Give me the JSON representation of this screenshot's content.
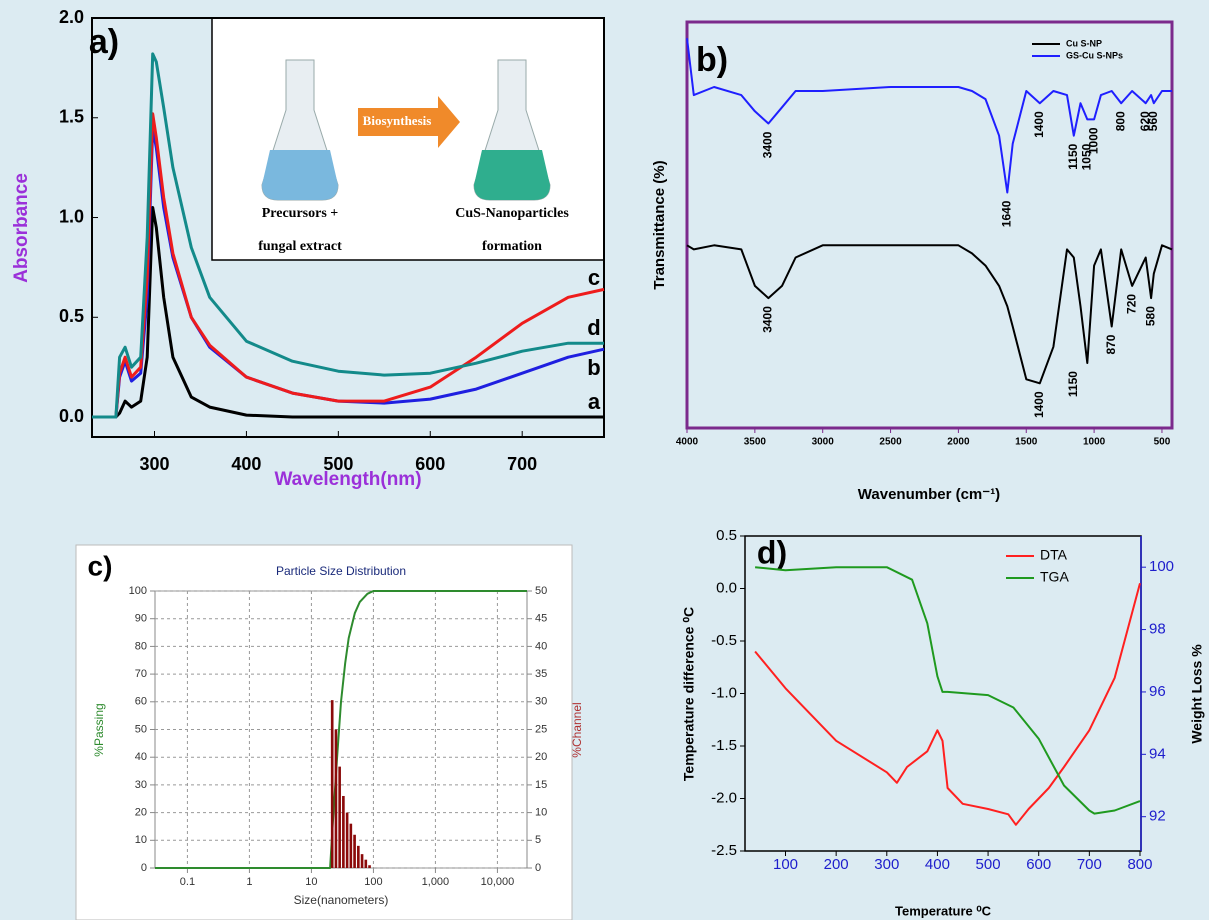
{
  "chart_data": [
    {
      "type": "line",
      "panel_label": "a)",
      "xlabel": "Wavelength(nm)",
      "ylabel": "Absorbance",
      "xlim": [
        232,
        789
      ],
      "ylim": [
        -0.1,
        2.0
      ],
      "xticks": [
        300,
        400,
        500,
        600,
        700
      ],
      "yticks": [
        {
          "value": 0,
          "label": "0.0"
        },
        0.5,
        {
          "value": 1,
          "label": "1.0"
        },
        1.5,
        {
          "value": 2,
          "label": "2.0"
        }
      ],
      "x": [
        232,
        258,
        262,
        268,
        275,
        285,
        292,
        298,
        302,
        310,
        320,
        340,
        360,
        400,
        450,
        500,
        550,
        600,
        650,
        700,
        750,
        789
      ],
      "series": [
        {
          "name": "a",
          "color": "#000000",
          "values": [
            0,
            0,
            0.02,
            0.08,
            0.05,
            0.08,
            0.3,
            1.05,
            0.95,
            0.6,
            0.3,
            0.1,
            0.05,
            0.01,
            0,
            0,
            0,
            0,
            0,
            0,
            0,
            0
          ]
        },
        {
          "name": "b",
          "color": "#1f1fe0",
          "values": [
            0,
            0,
            0.2,
            0.28,
            0.18,
            0.22,
            0.6,
            1.45,
            1.35,
            1.05,
            0.8,
            0.5,
            0.35,
            0.2,
            0.12,
            0.08,
            0.07,
            0.09,
            0.14,
            0.22,
            0.3,
            0.34
          ]
        },
        {
          "name": "c",
          "color": "#ee1c1c",
          "values": [
            0,
            0,
            0.22,
            0.3,
            0.2,
            0.25,
            0.7,
            1.52,
            1.4,
            1.1,
            0.82,
            0.5,
            0.36,
            0.2,
            0.12,
            0.08,
            0.08,
            0.15,
            0.3,
            0.47,
            0.6,
            0.64
          ]
        },
        {
          "name": "d",
          "color": "#138a8a",
          "values": [
            0,
            0,
            0.3,
            0.35,
            0.25,
            0.3,
            0.9,
            1.82,
            1.78,
            1.55,
            1.25,
            0.85,
            0.6,
            0.38,
            0.28,
            0.23,
            0.21,
            0.22,
            0.27,
            0.33,
            0.37,
            0.37
          ]
        }
      ],
      "inset": {
        "arrow": "Biosynthesis",
        "left": [
          "Precursors +",
          "fungal extract"
        ],
        "right": [
          "CuS-Nanoparticles",
          "formation"
        ]
      }
    },
    {
      "type": "line",
      "panel_label": "b)",
      "xlabel": "Wavenumber (cm⁻¹)",
      "ylabel": "Transmittance (%)",
      "xlim": [
        4000,
        426
      ],
      "ylim": [
        0,
        100
      ],
      "xticks": [
        4000,
        3500,
        3000,
        2500,
        2000,
        1500,
        1000,
        500
      ],
      "legend": "upper right",
      "x": [
        4000,
        3950,
        3800,
        3600,
        3500,
        3400,
        3300,
        3200,
        3000,
        2500,
        2000,
        1900,
        1800,
        1700,
        1640,
        1600,
        1500,
        1400,
        1300,
        1200,
        1150,
        1100,
        1050,
        1000,
        950,
        870,
        800,
        720,
        620,
        580,
        560,
        500,
        426
      ],
      "series": [
        {
          "name": "Cu S-NP",
          "color": "#000000",
          "values": [
            45,
            44,
            45,
            44,
            35,
            32,
            35,
            42,
            45,
            45,
            45,
            43,
            40,
            35,
            30,
            25,
            12,
            11,
            20,
            44,
            42,
            30,
            16,
            40,
            44,
            25,
            44,
            35,
            42,
            32,
            38,
            45,
            44
          ],
          "peaks": [
            3400,
            1400,
            1150,
            870,
            720,
            580
          ]
        },
        {
          "name": "GS-Cu S-NPs",
          "color": "#1f1fff",
          "values": [
            96,
            82,
            84,
            82,
            78,
            75,
            79,
            83,
            83,
            84,
            84,
            83,
            81,
            72,
            58,
            70,
            83,
            80,
            83,
            82,
            72,
            80,
            76,
            76,
            82,
            83,
            80,
            83,
            80,
            82,
            80,
            83,
            83
          ],
          "peaks": [
            3400,
            1640,
            1400,
            1150,
            1050,
            1000,
            800,
            620,
            560
          ]
        }
      ]
    },
    {
      "type": "histogram",
      "panel_label": "c)",
      "title": "Particle Size Distribution",
      "xlabel": "Size(nanometers)",
      "ylabel": "%Passing",
      "y2label": "%Channel",
      "xlim": [
        0.03,
        30000
      ],
      "log_x": true,
      "ylim": [
        0,
        100
      ],
      "y2lim": [
        0,
        50
      ],
      "grid": true,
      "xticks": [
        0.1,
        1,
        10,
        100,
        {
          "value": 1000,
          "label": "1,000"
        },
        {
          "value": 10000,
          "label": "10,000"
        }
      ],
      "yticks": [
        0,
        10,
        20,
        30,
        40,
        50,
        60,
        70,
        80,
        90,
        100
      ],
      "y2ticks": [
        0,
        5,
        10,
        15,
        20,
        25,
        30,
        35,
        40,
        45,
        50
      ],
      "series": [
        {
          "type": "line",
          "color": "#2e8b2e",
          "x": [
            0.03,
            20,
            22,
            26,
            30,
            35,
            40,
            50,
            60,
            80,
            100,
            30000
          ],
          "values": [
            0,
            0,
            15,
            40,
            60,
            74,
            83,
            92,
            96,
            99,
            100,
            100
          ]
        },
        {
          "type": "histogram",
          "axis": "y2",
          "color": "#8b0a0a",
          "bins": [
            20.6,
            23.7,
            27.2,
            31.2,
            35.9,
            41.2,
            47.3,
            54.4,
            62.5,
            71.8,
            82.5,
            94.7
          ],
          "values": [
            30.3,
            25,
            18.3,
            13,
            10,
            8,
            6,
            4,
            2.5,
            1.5,
            0.5
          ]
        }
      ]
    },
    {
      "type": "line",
      "panel_label": "d)",
      "xlabel": "Temperature ⁰C",
      "ylabel": "Temperature difference ⁰C",
      "y2label": "Weight Loss %",
      "xlim": [
        20,
        802
      ],
      "ylim": [
        -2.5,
        0.5
      ],
      "y2lim": [
        90.9,
        101
      ],
      "xticks": [
        100,
        200,
        300,
        400,
        500,
        600,
        700,
        800
      ],
      "yticks": [
        -2.5,
        {
          "value": -2,
          "label": "-2.0"
        },
        -1.5,
        {
          "value": -1,
          "label": "-1.0"
        },
        -0.5,
        {
          "value": 0,
          "label": "0.0"
        },
        0.5
      ],
      "y2ticks": [
        92,
        94,
        96,
        98,
        100
      ],
      "legend": "upper right",
      "series": [
        {
          "name": "DTA",
          "color": "#ff2020",
          "x": [
            40,
            100,
            200,
            300,
            320,
            340,
            380,
            400,
            410,
            420,
            450,
            500,
            540,
            555,
            580,
            620,
            650,
            700,
            750,
            800
          ],
          "values": [
            -0.6,
            -0.95,
            -1.45,
            -1.75,
            -1.85,
            -1.7,
            -1.55,
            -1.35,
            -1.45,
            -1.9,
            -2.05,
            -2.1,
            -2.15,
            -2.25,
            -2.1,
            -1.9,
            -1.7,
            -1.35,
            -0.85,
            0.05
          ]
        },
        {
          "name": "TGA",
          "color": "#1f9a1f",
          "axis": "y2",
          "x": [
            40,
            100,
            200,
            300,
            350,
            380,
            400,
            410,
            420,
            500,
            550,
            600,
            650,
            700,
            710,
            750,
            800
          ],
          "values": [
            100,
            99.9,
            100,
            100,
            99.6,
            98.2,
            96.5,
            96.0,
            96.0,
            95.9,
            95.5,
            94.5,
            93.0,
            92.2,
            92.1,
            92.2,
            92.5
          ]
        }
      ]
    }
  ]
}
